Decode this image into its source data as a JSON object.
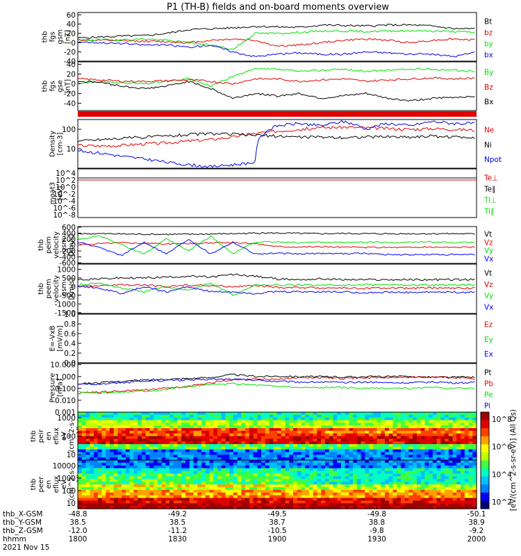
{
  "title": "P1 (TH-B) fields and on-board moments overview",
  "date": "2021 Nov 15",
  "colors": {
    "black": "#000000",
    "red": "#e00000",
    "green": "#00e000",
    "blue": "#0000ee"
  },
  "chart_data": [
    {
      "id": "fgs-gsm",
      "type": "line",
      "ylabel": [
        "thb",
        "fgs",
        "gsm",
        "[nT]"
      ],
      "ylim": [
        -40,
        65
      ],
      "ticks": [
        "60",
        "40",
        "20",
        "0",
        "-20",
        "-40"
      ],
      "tickvals": [
        60,
        40,
        20,
        0,
        -20,
        -40
      ],
      "series": [
        {
          "name": "Bt",
          "color": "black",
          "values": [
            10,
            12,
            14,
            15,
            20,
            28,
            30,
            32,
            35,
            34,
            33,
            38,
            37,
            36,
            38,
            38,
            36,
            30,
            30
          ]
        },
        {
          "name": "bz",
          "color": "red",
          "values": [
            6,
            5,
            4,
            3,
            2,
            0,
            5,
            8,
            5,
            -8,
            -5,
            0,
            5,
            8,
            5,
            0,
            5,
            8,
            5
          ]
        },
        {
          "name": "by",
          "color": "green",
          "values": [
            5,
            6,
            6,
            8,
            5,
            0,
            -5,
            -15,
            20,
            20,
            22,
            25,
            25,
            24,
            25,
            26,
            25,
            24,
            22
          ]
        },
        {
          "name": "bx",
          "color": "blue",
          "values": [
            2,
            0,
            -2,
            -5,
            -5,
            -10,
            -5,
            -20,
            -30,
            -25,
            -22,
            -25,
            -25,
            -20,
            -22,
            -25,
            -25,
            -30,
            -20
          ]
        }
      ]
    },
    {
      "id": "fgs-gse",
      "type": "line",
      "ylabel": [
        "thb",
        "fgs",
        "gse",
        "[nT]"
      ],
      "ylim": [
        -55,
        45
      ],
      "ticks": [
        "40",
        "20",
        "0",
        "-20",
        "-40"
      ],
      "tickvals": [
        40,
        20,
        0,
        -20,
        -40
      ],
      "series": [
        {
          "name": "By",
          "color": "green",
          "values": [
            0,
            5,
            2,
            0,
            5,
            10,
            -5,
            15,
            30,
            30,
            25,
            28,
            30,
            25,
            28,
            30,
            30,
            28,
            25
          ]
        },
        {
          "name": "Bz",
          "color": "red",
          "values": [
            10,
            8,
            5,
            5,
            6,
            8,
            5,
            0,
            10,
            10,
            5,
            8,
            10,
            5,
            8,
            10,
            12,
            10,
            12
          ]
        },
        {
          "name": "Bx",
          "color": "black",
          "values": [
            5,
            3,
            -5,
            -10,
            -5,
            5,
            -10,
            -30,
            -20,
            -25,
            -20,
            -30,
            -25,
            -20,
            -30,
            -35,
            -30,
            -28,
            -25
          ]
        }
      ]
    },
    {
      "id": "density",
      "type": "line",
      "ylabel": [
        "Density",
        "[cm-3]"
      ],
      "ylim_log10": [
        0,
        2.5
      ],
      "ticks": [
        "100",
        "10"
      ],
      "tickvals": [
        2,
        1
      ],
      "series": [
        {
          "name": "Ne",
          "color": "red",
          "values": [
            15,
            14,
            15,
            18,
            20,
            25,
            30,
            40,
            60,
            80,
            100,
            120,
            130,
            120,
            110,
            100,
            110,
            100,
            90
          ]
        },
        {
          "name": "Ni",
          "color": "black",
          "values": [
            25,
            30,
            35,
            40,
            45,
            55,
            60,
            55,
            50,
            45,
            40,
            40,
            38,
            40,
            42,
            40,
            45,
            40,
            40
          ]
        },
        {
          "name": "Npot",
          "color": "blue",
          "values": [
            8,
            6,
            4,
            3,
            2,
            1.5,
            1.2,
            1.5,
            2,
            150,
            200,
            150,
            250,
            100,
            200,
            150,
            250,
            200,
            200
          ]
        }
      ]
    },
    {
      "id": "moat3",
      "type": "line",
      "ylabel": [
        "moat3",
        "[eV]"
      ],
      "ticks": [
        "10^4",
        "10^2",
        "10^0",
        "10^-2",
        "10^-4",
        "10^-6",
        "10^-8"
      ],
      "series": [
        {
          "name": "Te⊥",
          "color": "red",
          "values": []
        },
        {
          "name": "Te∥",
          "color": "black",
          "values": []
        },
        {
          "name": "Ti⊥",
          "color": "green",
          "values": []
        },
        {
          "name": "Ti∥",
          "color": "green",
          "values": []
        }
      ]
    },
    {
      "id": "peim-velocity",
      "type": "line",
      "ylabel": [
        "thb",
        "peim",
        "velocity",
        "gsm",
        "[km/s]"
      ],
      "ylim": [
        -620,
        620
      ],
      "ticks": [
        "600",
        "400",
        "200",
        "0",
        "-200",
        "-400",
        "-600"
      ],
      "tickvals": [
        600,
        400,
        200,
        0,
        -200,
        -400,
        -600
      ],
      "series": [
        {
          "name": "Vt",
          "color": "black",
          "values": [
            380,
            380,
            370,
            360,
            360,
            360,
            370,
            380,
            400,
            400,
            390,
            380,
            390,
            380,
            380,
            380,
            380,
            380,
            370
          ]
        },
        {
          "name": "Vz",
          "color": "red",
          "values": [
            0,
            50,
            80,
            60,
            40,
            50,
            70,
            80,
            50,
            -50,
            -60,
            -60,
            -70,
            -80,
            -80,
            -80,
            -70,
            -80,
            -70
          ]
        },
        {
          "name": "Vy",
          "color": "green",
          "values": [
            200,
            300,
            0,
            -300,
            200,
            -200,
            300,
            -300,
            100,
            100,
            80,
            100,
            80,
            100,
            80,
            100,
            100,
            80,
            100
          ]
        },
        {
          "name": "Vx",
          "color": "blue",
          "values": [
            100,
            -100,
            -350,
            100,
            -300,
            200,
            -300,
            100,
            -300,
            -280,
            -300,
            -280,
            -290,
            -280,
            -320,
            -330,
            -320,
            -330,
            -320
          ]
        }
      ]
    },
    {
      "id": "peem-velocity",
      "type": "line",
      "ylabel": [
        "thb",
        "peem",
        "velocity",
        "gsm",
        "[km/s]"
      ],
      "ylim": [
        -1550,
        1300
      ],
      "ticks": [
        "1000",
        "500",
        "0",
        "-500",
        "-1000",
        "-1500"
      ],
      "tickvals": [
        1000,
        500,
        0,
        -500,
        -1000,
        -1500
      ],
      "series": [
        {
          "name": "Vt",
          "color": "black",
          "values": [
            400,
            450,
            500,
            500,
            550,
            600,
            550,
            700,
            600,
            450,
            400,
            450,
            400,
            400,
            400,
            400,
            400,
            400,
            400
          ]
        },
        {
          "name": "Vz",
          "color": "red",
          "values": [
            0,
            50,
            100,
            80,
            0,
            100,
            50,
            0,
            50,
            -50,
            -50,
            -80,
            -80,
            -100,
            -80,
            -100,
            -80,
            -100,
            -80
          ]
        },
        {
          "name": "Vy",
          "color": "green",
          "values": [
            100,
            200,
            -100,
            -300,
            0,
            -200,
            200,
            -500,
            100,
            100,
            80,
            100,
            80,
            100,
            100,
            100,
            80,
            100,
            100
          ]
        },
        {
          "name": "Vx",
          "color": "blue",
          "values": [
            50,
            -100,
            -400,
            0,
            -300,
            0,
            -300,
            -300,
            -400,
            -300,
            -300,
            -300,
            -300,
            -350,
            -330,
            -350,
            -320,
            -330,
            -320
          ]
        }
      ]
    },
    {
      "id": "efield",
      "type": "line",
      "ylabel": [
        "E=-VxB",
        "[mV/m]"
      ],
      "ylim": [
        0,
        1
      ],
      "ticks": [
        "1.0",
        "0.8",
        "0.6",
        "0.4",
        "0.2",
        "0.0"
      ],
      "tickvals": [
        1,
        0.8,
        0.6,
        0.4,
        0.2,
        0
      ],
      "series": [
        {
          "name": "Ez",
          "color": "red",
          "values": []
        },
        {
          "name": "Ey",
          "color": "green",
          "values": []
        },
        {
          "name": "Ex",
          "color": "blue",
          "values": []
        }
      ]
    },
    {
      "id": "pressure",
      "type": "line",
      "ylabel": [
        "Pressure",
        "[nPa]"
      ],
      "ylim_log10": [
        -3,
        1.1
      ],
      "ticks": [
        "10.000",
        "1.000",
        "0.100",
        "0.010",
        "0.001"
      ],
      "tickvals": [
        1,
        0,
        -1,
        -2,
        -3
      ],
      "series": [
        {
          "name": "Pt",
          "color": "black",
          "values": [
            0.25,
            0.3,
            0.4,
            0.5,
            0.6,
            0.7,
            0.8,
            1.5,
            1.0,
            1.1,
            1.0,
            1.0,
            0.9,
            1.0,
            1.0,
            1.0,
            0.9,
            0.9,
            0.9
          ]
        },
        {
          "name": "Pb",
          "color": "red",
          "values": [
            0.04,
            0.05,
            0.06,
            0.08,
            0.1,
            0.15,
            0.3,
            0.5,
            0.6,
            0.6,
            0.8,
            0.8,
            0.7,
            0.8,
            0.8,
            0.9,
            0.9,
            0.8,
            0.7
          ]
        },
        {
          "name": "Pe",
          "color": "green",
          "values": [
            0.05,
            0.04,
            0.05,
            0.06,
            0.08,
            0.15,
            0.2,
            0.25,
            0.2,
            0.15,
            0.12,
            0.12,
            0.12,
            0.1,
            0.1,
            0.1,
            0.12,
            0.1,
            0.1
          ]
        },
        {
          "name": "Pi",
          "color": "blue",
          "values": [
            0.2,
            0.25,
            0.3,
            0.4,
            0.5,
            0.5,
            0.6,
            0.6,
            0.5,
            0.4,
            0.35,
            0.35,
            0.3,
            0.35,
            0.3,
            0.3,
            0.35,
            0.3,
            0.3
          ]
        }
      ]
    },
    {
      "id": "peir-spec",
      "type": "heatmap",
      "ylabel": [
        "thb",
        "peir",
        "en",
        "eflux",
        "eV",
        "(cm^2-s-",
        "sr-eV)"
      ],
      "yticks": [
        "1000",
        "100",
        "10"
      ]
    },
    {
      "id": "peer-spec",
      "type": "heatmap",
      "ylabel": [
        "thb",
        "peer",
        "en",
        "eflux",
        "eV",
        "(cm^2-s-",
        "sr-eV)"
      ],
      "yticks": [
        "10000",
        "1000",
        "100",
        "10"
      ]
    }
  ],
  "colorbar": {
    "ticks": [
      "10^8",
      "10^6",
      "10^4",
      "10^2"
    ],
    "label": "[eV/(cm^2-s-sr-eV)] (All Qs)"
  },
  "xaxis": {
    "ticks": [
      {
        "x_gsm": "-48.8",
        "y_gsm": "38.5",
        "z_gsm": "-12.0",
        "hhmm": "1800"
      },
      {
        "x_gsm": "-49.2",
        "y_gsm": "38.5",
        "z_gsm": "-11.2",
        "hhmm": "1830"
      },
      {
        "x_gsm": "-49.5",
        "y_gsm": "38.7",
        "z_gsm": "-10.5",
        "hhmm": "1900"
      },
      {
        "x_gsm": "-49.8",
        "y_gsm": "38.8",
        "z_gsm": "-9.8",
        "hhmm": "1930"
      },
      {
        "x_gsm": "-50.1",
        "y_gsm": "38.9",
        "z_gsm": "-9.2",
        "hhmm": "2000"
      }
    ],
    "row_labels": [
      "thb_X-GSM",
      "thb_Y-GSM",
      "thb_Z-GSM",
      "hhmm"
    ]
  }
}
